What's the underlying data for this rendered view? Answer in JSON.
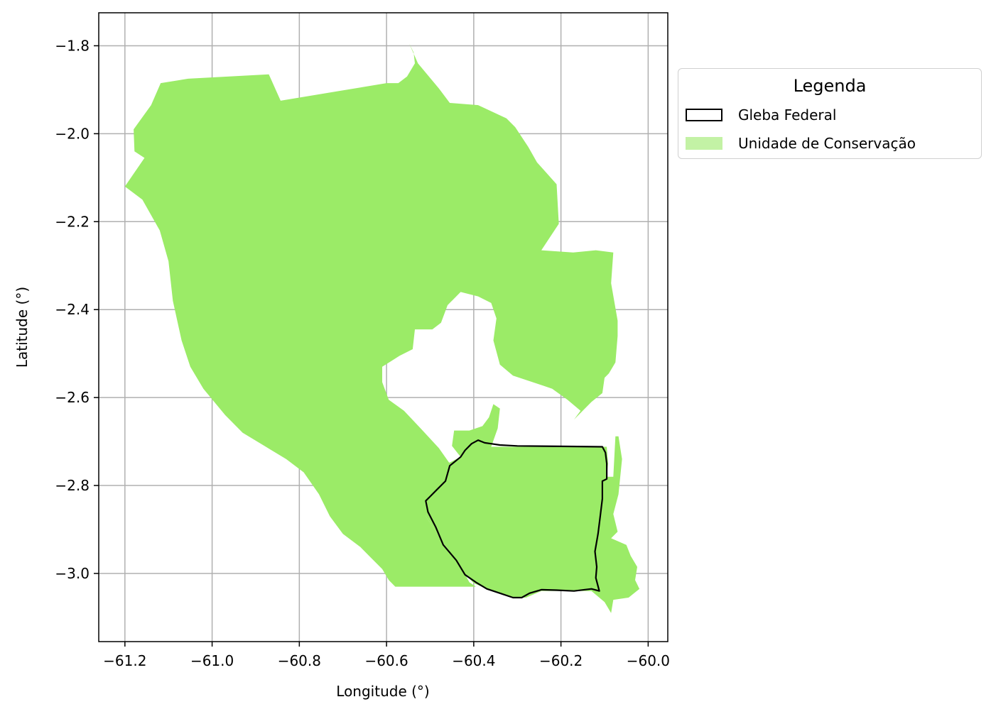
{
  "map": {
    "xlabel": "Longitude (°)",
    "ylabel": "Latitude (°)",
    "xlim": [
      -61.26,
      -59.955
    ],
    "ylim": [
      -3.155,
      -1.725
    ],
    "grid": true,
    "x_ticks": [
      -61.2,
      -61.0,
      -60.8,
      -60.6,
      -60.4,
      -60.2,
      -60.0
    ],
    "x_tick_labels": [
      "−61.2",
      "−61.0",
      "−60.8",
      "−60.6",
      "−60.4",
      "−60.2",
      "−60.0"
    ],
    "y_ticks": [
      -1.8,
      -2.0,
      -2.2,
      -2.4,
      -2.6,
      -2.8,
      -3.0
    ],
    "y_tick_labels": [
      "−1.8",
      "−2.0",
      "−2.2",
      "−2.4",
      "−2.6",
      "−2.8",
      "−3.0"
    ],
    "colors": {
      "unidade": "#9beb67",
      "unidade_legend": "#c3f2a5",
      "gleba_edge": "#000000",
      "grid": "#b0b0b0"
    },
    "unidade_polygons": [
      [
        [
          -61.118,
          -1.885
        ],
        [
          -61.055,
          -1.875
        ],
        [
          -60.87,
          -1.865
        ],
        [
          -60.843,
          -1.925
        ],
        [
          -60.6,
          -1.885
        ],
        [
          -60.573,
          -1.885
        ],
        [
          -60.553,
          -1.87
        ],
        [
          -60.535,
          -1.84
        ],
        [
          -60.538,
          -1.815
        ],
        [
          -60.548,
          -1.795
        ],
        [
          -60.528,
          -1.84
        ],
        [
          -60.48,
          -1.897
        ],
        [
          -60.455,
          -1.93
        ],
        [
          -60.39,
          -1.935
        ],
        [
          -60.325,
          -1.965
        ],
        [
          -60.305,
          -1.985
        ],
        [
          -60.275,
          -2.03
        ],
        [
          -60.255,
          -2.065
        ],
        [
          -60.21,
          -2.115
        ],
        [
          -60.205,
          -2.205
        ],
        [
          -60.245,
          -2.265
        ],
        [
          -60.172,
          -2.27
        ],
        [
          -60.12,
          -2.265
        ],
        [
          -60.08,
          -2.27
        ],
        [
          -60.085,
          -2.34
        ],
        [
          -60.07,
          -2.425
        ],
        [
          -60.07,
          -2.46
        ],
        [
          -60.075,
          -2.52
        ],
        [
          -60.09,
          -2.545
        ],
        [
          -60.1,
          -2.555
        ],
        [
          -60.105,
          -2.59
        ],
        [
          -60.13,
          -2.61
        ],
        [
          -60.16,
          -2.64
        ],
        [
          -60.17,
          -2.65
        ],
        [
          -60.155,
          -2.63
        ],
        [
          -60.185,
          -2.605
        ],
        [
          -60.22,
          -2.58
        ],
        [
          -60.25,
          -2.57
        ],
        [
          -60.31,
          -2.55
        ],
        [
          -60.34,
          -2.525
        ],
        [
          -60.355,
          -2.47
        ],
        [
          -60.348,
          -2.42
        ],
        [
          -60.36,
          -2.385
        ],
        [
          -60.39,
          -2.37
        ],
        [
          -60.43,
          -2.36
        ],
        [
          -60.46,
          -2.39
        ],
        [
          -60.475,
          -2.43
        ],
        [
          -60.495,
          -2.445
        ],
        [
          -60.535,
          -2.445
        ],
        [
          -60.54,
          -2.49
        ],
        [
          -60.57,
          -2.505
        ],
        [
          -60.61,
          -2.53
        ],
        [
          -60.61,
          -2.565
        ],
        [
          -60.595,
          -2.605
        ],
        [
          -60.56,
          -2.63
        ],
        [
          -60.52,
          -2.672
        ],
        [
          -60.48,
          -2.715
        ],
        [
          -60.455,
          -2.75
        ],
        [
          -60.465,
          -2.79
        ],
        [
          -60.488,
          -2.83
        ],
        [
          -60.51,
          -2.87
        ],
        [
          -60.47,
          -2.93
        ],
        [
          -60.44,
          -2.97
        ],
        [
          -60.42,
          -3.002
        ],
        [
          -60.41,
          -3.02
        ],
        [
          -60.395,
          -3.03
        ],
        [
          -60.58,
          -3.03
        ],
        [
          -60.595,
          -3.015
        ],
        [
          -60.61,
          -2.99
        ],
        [
          -60.64,
          -2.96
        ],
        [
          -60.66,
          -2.94
        ],
        [
          -60.7,
          -2.91
        ],
        [
          -60.73,
          -2.87
        ],
        [
          -60.755,
          -2.82
        ],
        [
          -60.79,
          -2.77
        ],
        [
          -60.83,
          -2.74
        ],
        [
          -60.88,
          -2.71
        ],
        [
          -60.93,
          -2.68
        ],
        [
          -60.97,
          -2.64
        ],
        [
          -61.02,
          -2.58
        ],
        [
          -61.05,
          -2.53
        ],
        [
          -61.07,
          -2.47
        ],
        [
          -61.09,
          -2.38
        ],
        [
          -61.1,
          -2.29
        ],
        [
          -61.12,
          -2.22
        ],
        [
          -61.16,
          -2.15
        ],
        [
          -61.2,
          -2.12
        ],
        [
          -61.155,
          -2.055
        ],
        [
          -61.178,
          -2.04
        ],
        [
          -61.18,
          -1.99
        ],
        [
          -61.14,
          -1.935
        ]
      ],
      [
        [
          -60.445,
          -2.675
        ],
        [
          -60.41,
          -2.675
        ],
        [
          -60.38,
          -2.665
        ],
        [
          -60.365,
          -2.645
        ],
        [
          -60.355,
          -2.615
        ],
        [
          -60.34,
          -2.625
        ],
        [
          -60.345,
          -2.67
        ],
        [
          -60.36,
          -2.712
        ],
        [
          -60.285,
          -2.712
        ],
        [
          -60.16,
          -2.712
        ],
        [
          -60.095,
          -2.712
        ],
        [
          -60.092,
          -2.75
        ],
        [
          -60.095,
          -2.78
        ],
        [
          -60.08,
          -2.78
        ],
        [
          -60.075,
          -2.688
        ],
        [
          -60.068,
          -2.688
        ],
        [
          -60.06,
          -2.74
        ],
        [
          -60.068,
          -2.82
        ],
        [
          -60.08,
          -2.865
        ],
        [
          -60.07,
          -2.905
        ],
        [
          -60.085,
          -2.92
        ],
        [
          -60.05,
          -2.935
        ],
        [
          -60.04,
          -2.96
        ],
        [
          -60.025,
          -2.985
        ],
        [
          -60.03,
          -3.015
        ],
        [
          -60.02,
          -3.035
        ],
        [
          -60.045,
          -3.055
        ],
        [
          -60.08,
          -3.06
        ],
        [
          -60.085,
          -3.09
        ],
        [
          -60.1,
          -3.065
        ],
        [
          -60.13,
          -3.04
        ],
        [
          -60.17,
          -3.04
        ],
        [
          -60.21,
          -3.04
        ],
        [
          -60.245,
          -3.04
        ],
        [
          -60.28,
          -3.055
        ],
        [
          -60.31,
          -3.055
        ],
        [
          -60.34,
          -3.045
        ],
        [
          -60.37,
          -3.035
        ],
        [
          -60.4,
          -3.022
        ],
        [
          -60.42,
          -3.002
        ],
        [
          -60.44,
          -2.97
        ],
        [
          -60.47,
          -2.93
        ],
        [
          -60.51,
          -2.87
        ],
        [
          -60.49,
          -2.83
        ],
        [
          -60.47,
          -2.79
        ],
        [
          -60.46,
          -2.75
        ],
        [
          -60.43,
          -2.735
        ],
        [
          -60.45,
          -2.71
        ]
      ]
    ],
    "gleba_polygon": [
      [
        -60.39,
        -2.697
      ],
      [
        -60.375,
        -2.703
      ],
      [
        -60.36,
        -2.705
      ],
      [
        -60.34,
        -2.708
      ],
      [
        -60.3,
        -2.71
      ],
      [
        -60.2,
        -2.711
      ],
      [
        -60.105,
        -2.712
      ],
      [
        -60.098,
        -2.725
      ],
      [
        -60.095,
        -2.75
      ],
      [
        -60.095,
        -2.785
      ],
      [
        -60.105,
        -2.79
      ],
      [
        -60.105,
        -2.83
      ],
      [
        -60.11,
        -2.87
      ],
      [
        -60.115,
        -2.91
      ],
      [
        -60.122,
        -2.95
      ],
      [
        -60.118,
        -2.985
      ],
      [
        -60.12,
        -3.01
      ],
      [
        -60.112,
        -3.04
      ],
      [
        -60.13,
        -3.035
      ],
      [
        -60.17,
        -3.04
      ],
      [
        -60.21,
        -3.038
      ],
      [
        -60.245,
        -3.037
      ],
      [
        -60.272,
        -3.045
      ],
      [
        -60.29,
        -3.055
      ],
      [
        -60.31,
        -3.055
      ],
      [
        -60.34,
        -3.045
      ],
      [
        -60.37,
        -3.035
      ],
      [
        -60.395,
        -3.02
      ],
      [
        -60.42,
        -3.003
      ],
      [
        -60.44,
        -2.97
      ],
      [
        -60.47,
        -2.935
      ],
      [
        -60.487,
        -2.895
      ],
      [
        -60.505,
        -2.86
      ],
      [
        -60.51,
        -2.835
      ],
      [
        -60.5,
        -2.825
      ],
      [
        -60.485,
        -2.81
      ],
      [
        -60.465,
        -2.79
      ],
      [
        -60.455,
        -2.755
      ],
      [
        -60.43,
        -2.735
      ],
      [
        -60.42,
        -2.72
      ],
      [
        -60.405,
        -2.705
      ]
    ]
  },
  "legend": {
    "title": "Legenda",
    "items": [
      {
        "label": "Gleba Federal",
        "kind": "outline",
        "edge": "#000000",
        "face": "#ffffff"
      },
      {
        "label": "Unidade de Conservação",
        "kind": "fill",
        "face": "#c3f2a5"
      }
    ]
  }
}
